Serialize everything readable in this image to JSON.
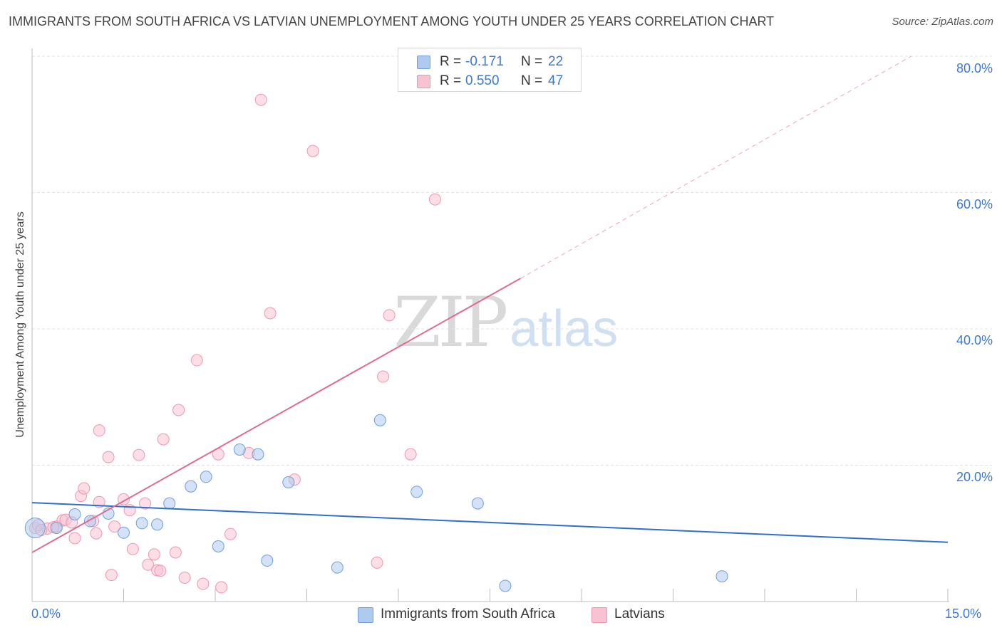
{
  "header": {
    "title": "IMMIGRANTS FROM SOUTH AFRICA VS LATVIAN UNEMPLOYMENT AMONG YOUTH UNDER 25 YEARS CORRELATION CHART",
    "source": "Source: ZipAtlas.com"
  },
  "watermark": {
    "zip": "ZIP",
    "atlas": "atlas"
  },
  "legend_stats": {
    "series1": {
      "r_label": "R =",
      "r_value": "-0.171",
      "n_label": "N =",
      "n_value": "22"
    },
    "series2": {
      "r_label": "R =",
      "r_value": "0.550",
      "n_label": "N =",
      "n_value": "47"
    }
  },
  "colors": {
    "blue_fill": "#aecbef",
    "blue_stroke": "#6f9fdc",
    "blue_line": "#2f6fcf",
    "pink_fill": "#f7c2d2",
    "pink_stroke": "#ee97b1",
    "pink_line": "#e06a96",
    "grid": "#e2e2e2",
    "tick_text": "#3c78d8"
  },
  "chart_data": {
    "type": "scatter",
    "title": "IMMIGRANTS FROM SOUTH AFRICA VS LATVIAN UNEMPLOYMENT AMONG YOUTH UNDER 25 YEARS CORRELATION CHART",
    "xlabel": "",
    "ylabel": "Unemployment Among Youth under 25 years",
    "xlim": [
      0,
      15
    ],
    "ylim": [
      0,
      80
    ],
    "x_tick_labels": [
      "0.0%",
      "15.0%"
    ],
    "y_ticks": [
      20,
      40,
      60,
      80
    ],
    "y_tick_labels": [
      "20.0%",
      "40.0%",
      "60.0%",
      "80.0%"
    ],
    "grid": true,
    "legend_position": "bottom",
    "series": [
      {
        "name": "Immigrants from South Africa",
        "color": "blue",
        "points": [
          [
            0.05,
            10.8
          ],
          [
            0.4,
            10.8
          ],
          [
            0.7,
            12.8
          ],
          [
            0.95,
            11.8
          ],
          [
            1.25,
            12.9
          ],
          [
            1.5,
            10.1
          ],
          [
            1.8,
            11.5
          ],
          [
            2.05,
            11.3
          ],
          [
            2.25,
            14.4
          ],
          [
            2.6,
            16.9
          ],
          [
            2.85,
            18.3
          ],
          [
            3.05,
            8.1
          ],
          [
            3.4,
            22.3
          ],
          [
            3.7,
            21.6
          ],
          [
            3.85,
            6.0
          ],
          [
            4.2,
            17.5
          ],
          [
            5.0,
            5.0
          ],
          [
            5.7,
            26.6
          ],
          [
            6.3,
            16.1
          ],
          [
            7.3,
            14.4
          ],
          [
            7.75,
            2.3
          ],
          [
            11.3,
            3.7
          ]
        ],
        "trend": {
          "x_start": 0.0,
          "y_start": 14.5,
          "x_end": 15.0,
          "y_end": 8.7
        }
      },
      {
        "name": "Latvians",
        "color": "pink",
        "points": [
          [
            0.05,
            10.8
          ],
          [
            0.25,
            10.7
          ],
          [
            0.4,
            11.0
          ],
          [
            0.5,
            11.9
          ],
          [
            0.55,
            12.0
          ],
          [
            0.65,
            11.6
          ],
          [
            0.7,
            9.3
          ],
          [
            0.8,
            15.5
          ],
          [
            0.85,
            16.6
          ],
          [
            1.0,
            11.8
          ],
          [
            1.05,
            10.0
          ],
          [
            1.1,
            14.6
          ],
          [
            1.1,
            25.1
          ],
          [
            1.25,
            21.2
          ],
          [
            1.3,
            3.9
          ],
          [
            1.35,
            11.0
          ],
          [
            1.5,
            15.0
          ],
          [
            1.6,
            13.4
          ],
          [
            1.65,
            7.7
          ],
          [
            1.75,
            21.5
          ],
          [
            1.85,
            14.4
          ],
          [
            1.9,
            5.4
          ],
          [
            2.0,
            6.9
          ],
          [
            2.05,
            4.6
          ],
          [
            2.1,
            4.5
          ],
          [
            2.15,
            23.8
          ],
          [
            2.35,
            7.2
          ],
          [
            2.4,
            28.1
          ],
          [
            2.5,
            3.5
          ],
          [
            2.7,
            35.4
          ],
          [
            2.8,
            2.6
          ],
          [
            3.05,
            21.6
          ],
          [
            3.1,
            2.1
          ],
          [
            3.25,
            9.9
          ],
          [
            3.55,
            21.8
          ],
          [
            3.75,
            73.6
          ],
          [
            3.9,
            42.3
          ],
          [
            4.3,
            17.9
          ],
          [
            4.6,
            66.1
          ],
          [
            5.65,
            5.7
          ],
          [
            5.75,
            33.0
          ],
          [
            5.85,
            42.0
          ],
          [
            6.2,
            21.6
          ],
          [
            6.6,
            59.0
          ],
          [
            0.1,
            11.2
          ],
          [
            0.15,
            10.5
          ],
          [
            0.35,
            10.9
          ]
        ],
        "trend": {
          "x_start": 0.0,
          "y_start": 7.2,
          "x_end": 8.0,
          "y_end": 47.4,
          "dash_to_x": 14.4,
          "dash_to_y": 80.0
        }
      }
    ]
  }
}
